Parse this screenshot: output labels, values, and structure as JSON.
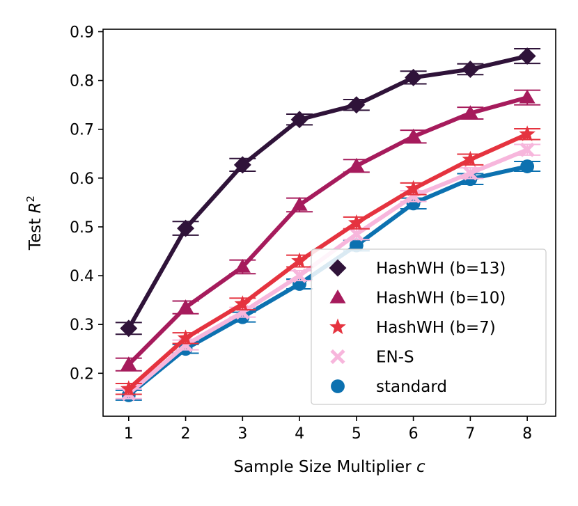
{
  "chart_data": {
    "type": "line",
    "title": "",
    "xlabel": "Sample Size Multiplier",
    "xlabel_var": "c",
    "ylabel": "Test",
    "ylabel_var": "R",
    "ylabel_sup": "2",
    "x": [
      1,
      2,
      3,
      4,
      5,
      6,
      7,
      8
    ],
    "xticks": [
      "1",
      "2",
      "3",
      "4",
      "5",
      "6",
      "7",
      "8"
    ],
    "xlim": [
      0.55,
      8.5
    ],
    "ylim": [
      0.112,
      0.905
    ],
    "yticks": [
      "0.2",
      "0.3",
      "0.4",
      "0.5",
      "0.6",
      "0.7",
      "0.8",
      "0.9"
    ],
    "ytick_values": [
      0.2,
      0.3,
      0.4,
      0.5,
      0.6,
      0.7,
      0.8,
      0.9
    ],
    "grid": false,
    "legend_position": "bottom-right",
    "series": [
      {
        "name": "standard",
        "marker": "circle",
        "color": "#0c71b0",
        "values": [
          0.155,
          0.25,
          0.315,
          0.383,
          0.462,
          0.548,
          0.598,
          0.624
        ],
        "err": [
          0.01,
          0.009,
          0.01,
          0.01,
          0.011,
          0.011,
          0.011,
          0.01
        ]
      },
      {
        "name": "EN-S",
        "marker": "x",
        "color": "#f7b6dc",
        "values": [
          0.158,
          0.258,
          0.325,
          0.4,
          0.485,
          0.563,
          0.61,
          0.658
        ],
        "err": [
          0.01,
          0.01,
          0.01,
          0.01,
          0.011,
          0.011,
          0.011,
          0.011
        ]
      },
      {
        "name": "HashWH (b=7)",
        "marker": "star",
        "color": "#e5333f",
        "values": [
          0.168,
          0.272,
          0.342,
          0.43,
          0.508,
          0.578,
          0.638,
          0.69
        ],
        "err": [
          0.011,
          0.011,
          0.012,
          0.012,
          0.012,
          0.012,
          0.011,
          0.011
        ]
      },
      {
        "name": "HashWH (b=10)",
        "marker": "triangle",
        "color": "#a61b5c",
        "values": [
          0.218,
          0.335,
          0.418,
          0.545,
          0.625,
          0.685,
          0.733,
          0.765
        ],
        "err": [
          0.013,
          0.013,
          0.014,
          0.014,
          0.013,
          0.013,
          0.012,
          0.015
        ]
      },
      {
        "name": "HashWH (b=13)",
        "marker": "diamond",
        "color": "#2f1339",
        "values": [
          0.292,
          0.497,
          0.627,
          0.72,
          0.75,
          0.806,
          0.823,
          0.85
        ],
        "err": [
          0.012,
          0.014,
          0.013,
          0.011,
          0.011,
          0.013,
          0.011,
          0.015
        ]
      }
    ],
    "legend_order": [
      "HashWH (b=13)",
      "HashWH (b=10)",
      "HashWH (b=7)",
      "EN-S",
      "standard"
    ]
  }
}
